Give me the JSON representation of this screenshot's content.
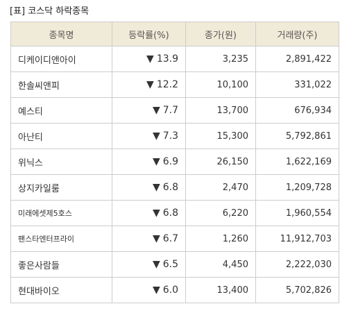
{
  "caption": "[표] 코스닥 하락종목",
  "columns": [
    "종목명",
    "등락률(%)",
    "종가(원)",
    "거래량(주)"
  ],
  "down_arrow": "▼",
  "rows": [
    {
      "name": "디케이디앤아이",
      "rate": "13.9",
      "price": "3,235",
      "volume": "2,891,422"
    },
    {
      "name": "한솔씨앤피",
      "rate": "12.2",
      "price": "10,100",
      "volume": "331,022"
    },
    {
      "name": "예스티",
      "rate": "7.7",
      "price": "13,700",
      "volume": "676,934"
    },
    {
      "name": "아난티",
      "rate": "7.3",
      "price": "15,300",
      "volume": "5,792,861"
    },
    {
      "name": "위닉스",
      "rate": "6.9",
      "price": "26,150",
      "volume": "1,622,169"
    },
    {
      "name": "상지카일룸",
      "rate": "6.8",
      "price": "2,470",
      "volume": "1,209,728"
    },
    {
      "name": "미래에셋제5호스",
      "rate": "6.8",
      "price": "6,220",
      "volume": "1,960,554"
    },
    {
      "name": "팬스타엔터프라이",
      "rate": "6.7",
      "price": "1,260",
      "volume": "11,912,703"
    },
    {
      "name": "좋은사람들",
      "rate": "6.5",
      "price": "4,450",
      "volume": "2,222,030"
    },
    {
      "name": "현대바이오",
      "rate": "6.0",
      "price": "13,400",
      "volume": "5,702,826"
    }
  ],
  "colors": {
    "header_bg": "#f0ead8",
    "border": "#cccccc",
    "down": "#2f7fd4"
  }
}
